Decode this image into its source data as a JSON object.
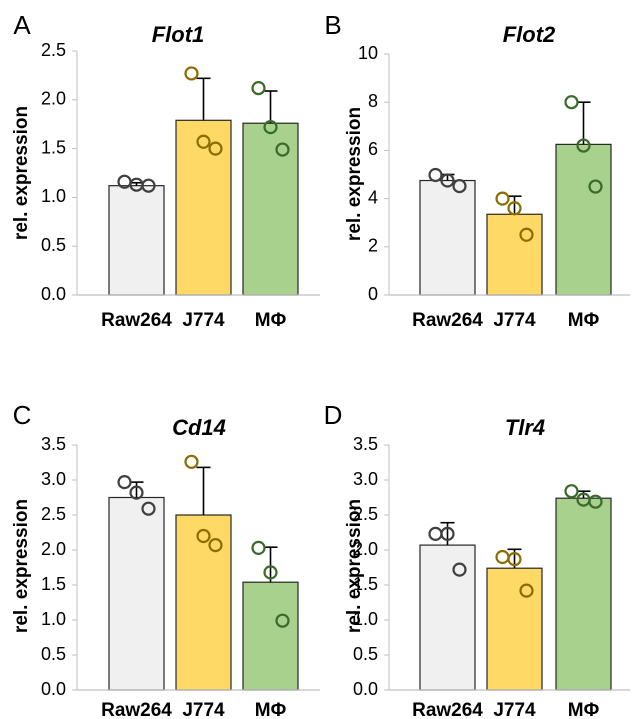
{
  "chart_data": [
    {
      "type": "bar",
      "panel": "A",
      "title": "Flot1",
      "ylabel": "rel. expression",
      "xlabel": "",
      "ylim": [
        0,
        2.5
      ],
      "yticks": [
        "0.0",
        "0.5",
        "1.0",
        "1.5",
        "2.0",
        "2.5"
      ],
      "categories": [
        "Raw264",
        "J774",
        "MΦ"
      ],
      "values": [
        1.12,
        1.79,
        1.76
      ],
      "errors": [
        0.03,
        0.43,
        0.33
      ],
      "points": [
        [
          1.16,
          1.13,
          1.12
        ],
        [
          2.27,
          1.57,
          1.5
        ],
        [
          2.12,
          1.72,
          1.49
        ]
      ],
      "colors": [
        "#f0f0f0",
        "#ffd966",
        "#a9d18e"
      ],
      "point_colors": [
        "#404040",
        "#8c6d00",
        "#3a6b2a"
      ]
    },
    {
      "type": "bar",
      "panel": "B",
      "title": "Flot2",
      "ylabel": "rel. expression",
      "xlabel": "",
      "ylim": [
        0,
        10
      ],
      "yticks": [
        "0",
        "2",
        "4",
        "6",
        "8",
        "10"
      ],
      "categories": [
        "Raw264",
        "J774",
        "MΦ"
      ],
      "values": [
        4.75,
        3.35,
        6.25
      ],
      "errors": [
        0.25,
        0.75,
        1.75
      ],
      "points": [
        [
          4.98,
          4.75,
          4.52
        ],
        [
          4.0,
          3.6,
          2.5
        ],
        [
          8.0,
          6.2,
          4.5
        ]
      ],
      "colors": [
        "#f0f0f0",
        "#ffd966",
        "#a9d18e"
      ],
      "point_colors": [
        "#404040",
        "#8c6d00",
        "#3a6b2a"
      ]
    },
    {
      "type": "bar",
      "panel": "C",
      "title": "Cd14",
      "ylabel": "rel. expression",
      "xlabel": "",
      "ylim": [
        0,
        3.5
      ],
      "yticks": [
        "0.0",
        "0.5",
        "1.0",
        "1.5",
        "2.0",
        "2.5",
        "3.0",
        "3.5"
      ],
      "categories": [
        "Raw264",
        "J774",
        "MΦ"
      ],
      "values": [
        2.75,
        2.5,
        1.54
      ],
      "errors": [
        0.22,
        0.68,
        0.5
      ],
      "points": [
        [
          2.97,
          2.82,
          2.59
        ],
        [
          3.26,
          2.2,
          2.07
        ],
        [
          2.03,
          1.68,
          0.99
        ]
      ],
      "colors": [
        "#f0f0f0",
        "#ffd966",
        "#a9d18e"
      ],
      "point_colors": [
        "#404040",
        "#8c6d00",
        "#3a6b2a"
      ]
    },
    {
      "type": "bar",
      "panel": "D",
      "title": "Tlr4",
      "ylabel": "rel. expression",
      "xlabel": "",
      "ylim": [
        0,
        3.5
      ],
      "yticks": [
        "0.0",
        "0.5",
        "1.0",
        "1.5",
        "2.0",
        "2.5",
        "3.0",
        "3.5"
      ],
      "categories": [
        "Raw264",
        "J774",
        "MΦ"
      ],
      "values": [
        2.07,
        1.74,
        2.74
      ],
      "errors": [
        0.32,
        0.27,
        0.1
      ],
      "points": [
        [
          2.23,
          2.23,
          1.72
        ],
        [
          1.9,
          1.87,
          1.42
        ],
        [
          2.84,
          2.72,
          2.69
        ]
      ],
      "colors": [
        "#f0f0f0",
        "#ffd966",
        "#a9d18e"
      ],
      "point_colors": [
        "#404040",
        "#8c6d00",
        "#3a6b2a"
      ]
    }
  ]
}
